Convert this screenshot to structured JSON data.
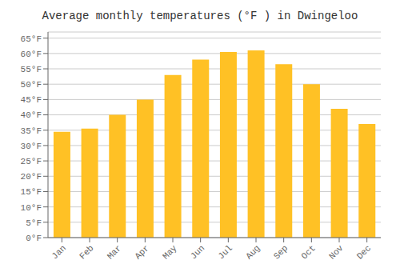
{
  "chart_data": {
    "type": "bar",
    "title": "Average monthly temperatures (°F ) in Dwingeloo",
    "categories": [
      "Jan",
      "Feb",
      "Mar",
      "Apr",
      "May",
      "Jun",
      "Jul",
      "Aug",
      "Sep",
      "Oct",
      "Nov",
      "Dec"
    ],
    "values": [
      34.5,
      35.5,
      40.0,
      45.0,
      53.0,
      58.0,
      60.5,
      61.0,
      56.5,
      50.0,
      42.0,
      37.0
    ],
    "color": "#FFC125",
    "ylim": [
      0,
      67
    ],
    "yticks": [
      {
        "value": 0,
        "label": "0°F"
      },
      {
        "value": 5,
        "label": "5°F"
      },
      {
        "value": 10,
        "label": "10°F"
      },
      {
        "value": 15,
        "label": "15°F"
      },
      {
        "value": 20,
        "label": "20°F"
      },
      {
        "value": 25,
        "label": "25°F"
      },
      {
        "value": 30,
        "label": "30°F"
      },
      {
        "value": 35,
        "label": "35°F"
      },
      {
        "value": 40,
        "label": "40°F"
      },
      {
        "value": 45,
        "label": "45°F"
      },
      {
        "value": 50,
        "label": "50°F"
      },
      {
        "value": 55,
        "label": "55°F"
      },
      {
        "value": 60,
        "label": "60°F"
      },
      {
        "value": 65,
        "label": "65°F"
      }
    ],
    "grid": true
  }
}
